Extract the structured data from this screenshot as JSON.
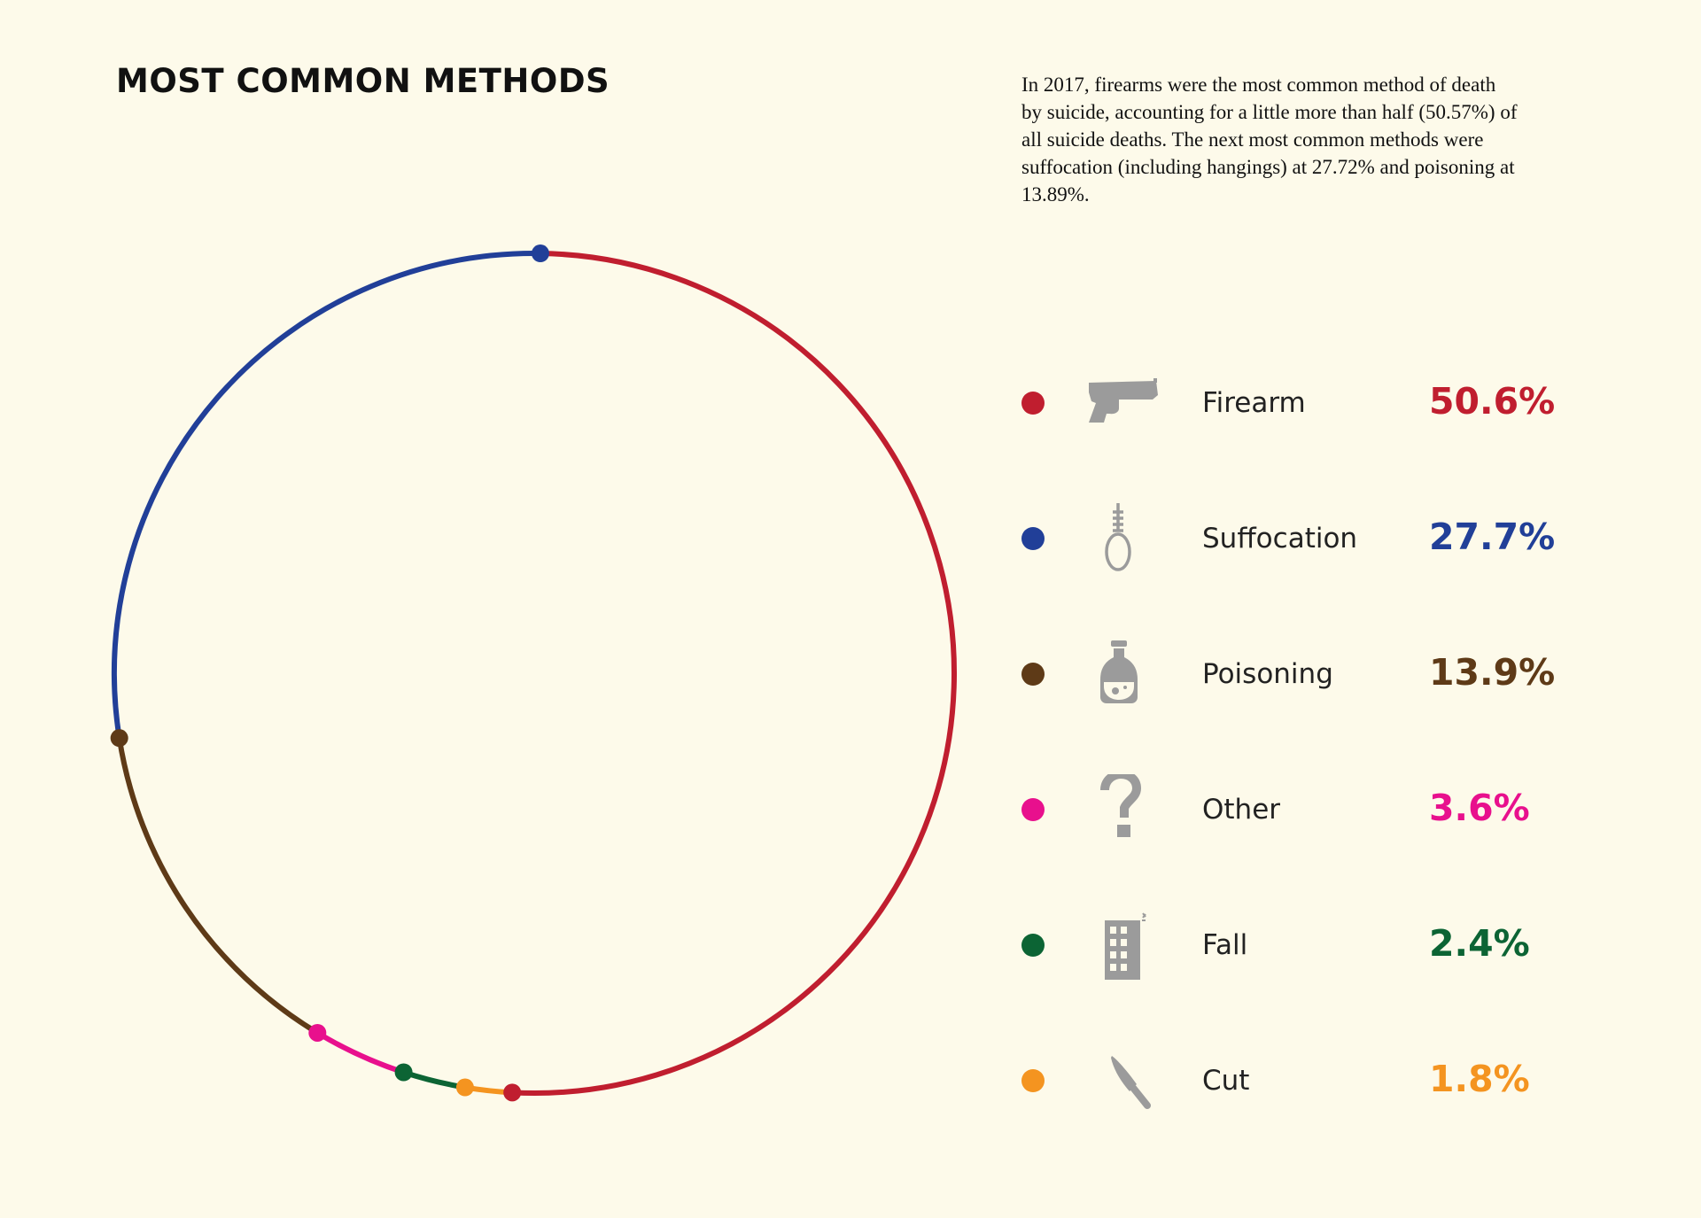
{
  "header": {
    "title": "MOST COMMON METHODS",
    "description": "In 2017, firearms were the most common method of death by suicide, accounting for a little more than half (50.57%) of all suicide deaths. The next most common methods were suffocation (including hangings) at 27.72% and poisoning at 13.89%."
  },
  "legend": {
    "items": [
      {
        "label": "Firearm",
        "value_label": "50.6%",
        "color": "#c01e2f",
        "icon": "pistol-icon"
      },
      {
        "label": "Suffocation",
        "value_label": "27.7%",
        "color": "#213f98",
        "icon": "noose-icon"
      },
      {
        "label": "Poisoning",
        "value_label": "13.9%",
        "color": "#5e3a17",
        "icon": "poison-bottle-icon"
      },
      {
        "label": "Other",
        "value_label": "3.6%",
        "color": "#e8108d",
        "icon": "question-mark-icon"
      },
      {
        "label": "Fall",
        "value_label": "2.4%",
        "color": "#0c6434",
        "icon": "building-icon"
      },
      {
        "label": "Cut",
        "value_label": "1.8%",
        "color": "#f49420",
        "icon": "knife-icon"
      }
    ]
  },
  "chart_data": {
    "type": "pie",
    "style": "ring",
    "categories": [
      "Firearm",
      "Suffocation",
      "Poisoning",
      "Other",
      "Fall",
      "Cut"
    ],
    "values": [
      50.6,
      27.7,
      13.9,
      3.6,
      2.4,
      1.8
    ],
    "unit": "%",
    "colors": [
      "#c01e2f",
      "#213f98",
      "#5e3a17",
      "#e8108d",
      "#0c6434",
      "#f49420"
    ],
    "legend_position": "right"
  }
}
